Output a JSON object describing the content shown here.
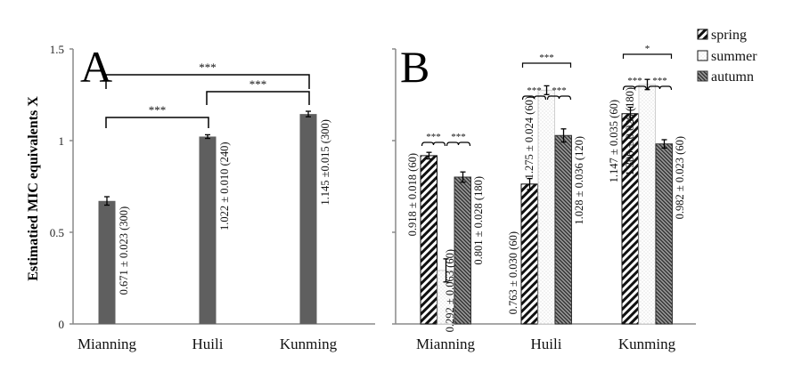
{
  "chart_data": [
    {
      "type": "bar",
      "panel_label": "A",
      "ylabel": "Estimatied MIC equivalents X",
      "xlabel": "",
      "ylim": [
        0,
        1.5
      ],
      "yticks": [
        "0",
        "0.5",
        "1",
        "1.5"
      ],
      "ytick_values": [
        0,
        0.5,
        1,
        1.5
      ],
      "grid": false,
      "categories": [
        "Mianning",
        "Huili",
        "Kunming"
      ],
      "values": [
        0.671,
        1.022,
        1.145
      ],
      "errors": [
        0.023,
        0.01,
        0.015
      ],
      "n": [
        300,
        240,
        300
      ],
      "data_labels": [
        "0.671 ± 0.023 (300)",
        "1.022 ± 0.010 (240)",
        "1.145 ±0.015 (300)"
      ],
      "bar_color": "#5f5f5f",
      "significance": [
        {
          "from": 0,
          "to": 1,
          "label": "***",
          "level": 1
        },
        {
          "from": 1,
          "to": 2,
          "label": "***",
          "level": 2
        },
        {
          "from": 0,
          "to": 2,
          "label": "***",
          "level": 3
        }
      ]
    },
    {
      "type": "bar",
      "panel_label": "B",
      "ylim": [
        0,
        1.5
      ],
      "yticks": [
        "0",
        "0.5",
        "1",
        "1.5"
      ],
      "ytick_values": [
        0,
        0.5,
        1,
        1.5
      ],
      "grid": false,
      "categories": [
        "Mianning",
        "Huili",
        "Kunming"
      ],
      "legend_position": "top-right",
      "series": [
        {
          "name": "spring",
          "pattern": "diagonal-wide",
          "values": [
            0.918,
            0.763,
            1.147
          ],
          "errors": [
            0.018,
            0.03,
            0.035
          ],
          "n": [
            60,
            60,
            60
          ],
          "data_labels": [
            "0.918 ± 0.018 (60)",
            "0.763 ± 0.030 (60)",
            "1.147 ± 0.035 (60)"
          ]
        },
        {
          "name": "summer",
          "pattern": "dotted",
          "values": [
            0.292,
            1.275,
            1.306
          ],
          "errors": [
            0.063,
            0.024,
            0.028
          ],
          "n": [
            60,
            60,
            180
          ],
          "data_labels": [
            "0.292 ± 0.063 (60)",
            "1.275 ± 0.024 (60)",
            "1.306 ± 0.028 (180)"
          ]
        },
        {
          "name": "autumn",
          "pattern": "diagonal-dense",
          "values": [
            0.801,
            1.028,
            0.982
          ],
          "errors": [
            0.028,
            0.036,
            0.023
          ],
          "n": [
            180,
            120,
            60
          ],
          "data_labels": [
            "0.801 ± 0.028 (180)",
            "1.028 ± 0.036 (120)",
            "0.982 ± 0.023 (60)"
          ]
        }
      ],
      "significance": [
        {
          "category": 0,
          "pairs": [
            {
              "from": 0,
              "to": 1,
              "label": "***"
            },
            {
              "from": 1,
              "to": 2,
              "label": "***"
            }
          ],
          "outer": null
        },
        {
          "category": 1,
          "pairs": [
            {
              "from": 0,
              "to": 1,
              "label": "***"
            },
            {
              "from": 1,
              "to": 2,
              "label": "***"
            }
          ],
          "outer": {
            "from": 0,
            "to": 2,
            "label": "***"
          }
        },
        {
          "category": 2,
          "pairs": [
            {
              "from": 0,
              "to": 1,
              "label": "***"
            },
            {
              "from": 1,
              "to": 2,
              "label": "***"
            }
          ],
          "outer": {
            "from": 0,
            "to": 2,
            "label": "*"
          }
        }
      ]
    }
  ]
}
